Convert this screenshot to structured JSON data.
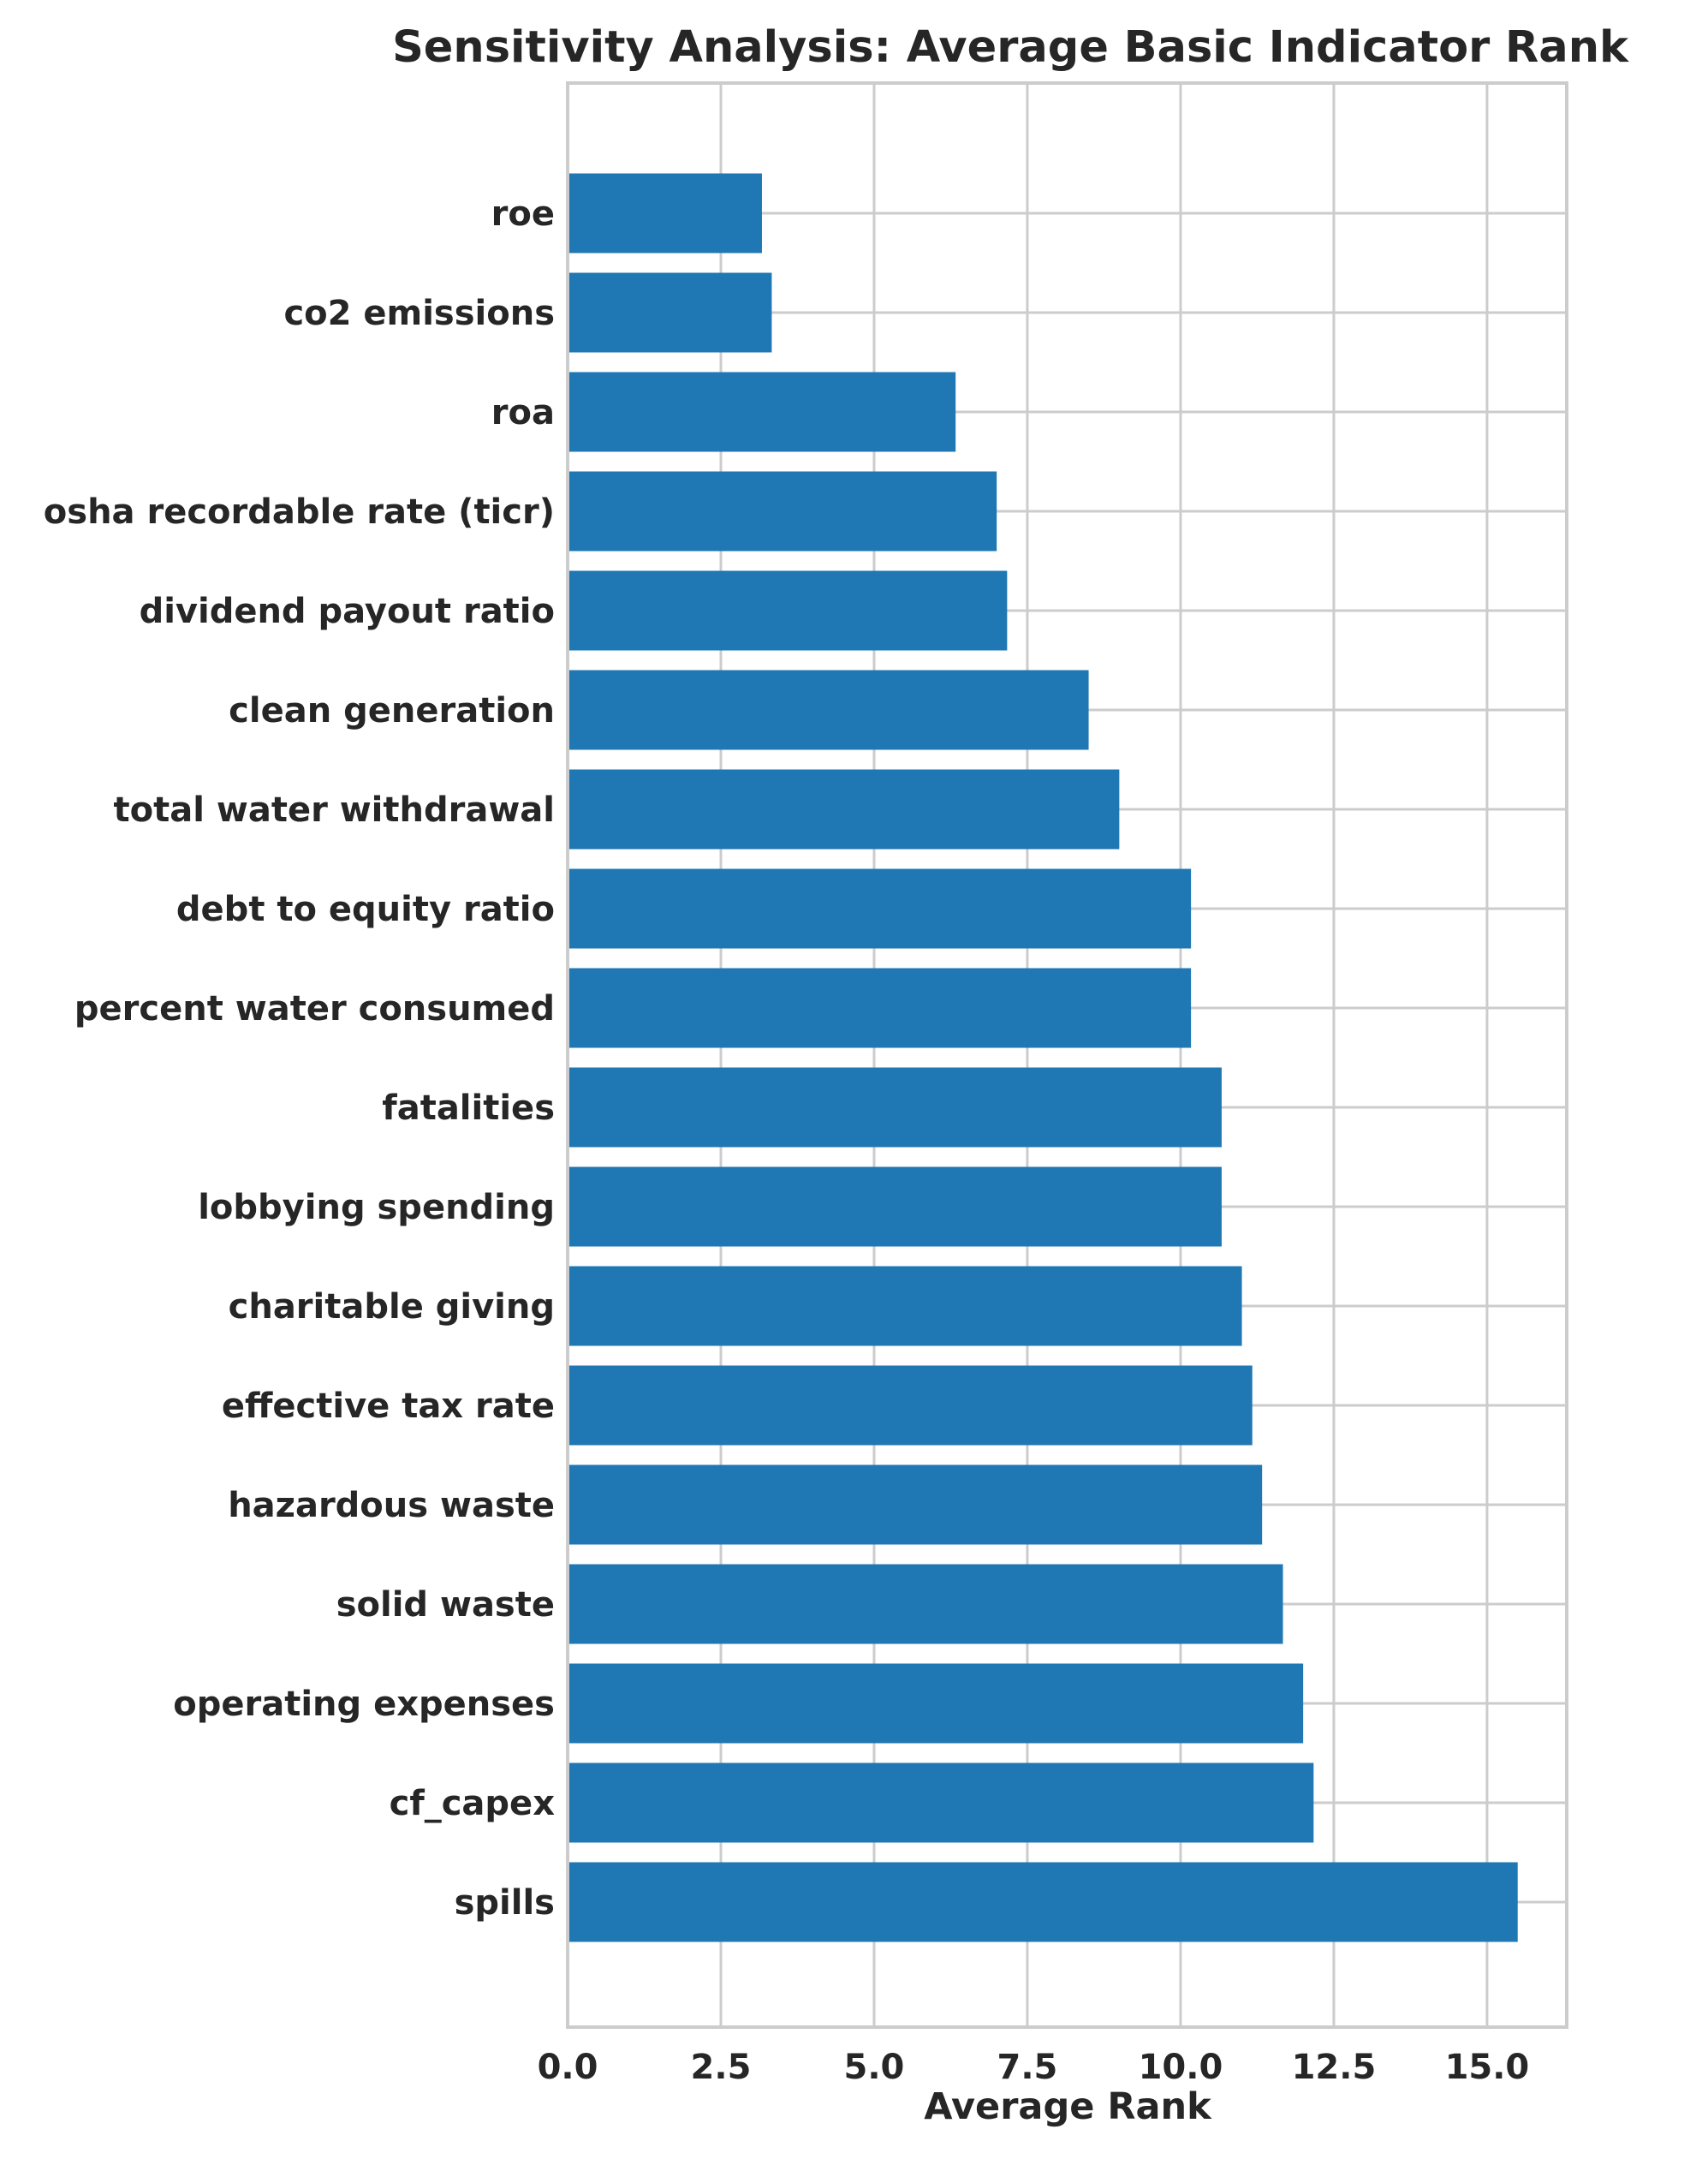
{
  "chart_data": {
    "type": "bar",
    "orientation": "horizontal",
    "title": "Sensitivity Analysis: Average Basic Indicator Rank",
    "xlabel": "Average Rank",
    "ylabel": "",
    "xlim": [
      0,
      16.3
    ],
    "x_ticks": [
      0.0,
      2.5,
      5.0,
      7.5,
      10.0,
      12.5,
      15.0
    ],
    "x_tick_labels": [
      "0.0",
      "2.5",
      "5.0",
      "7.5",
      "10.0",
      "12.5",
      "15.0"
    ],
    "grid": true,
    "bar_color": "#1f77b4",
    "categories": [
      "roe",
      "co2 emissions",
      "roa",
      "osha recordable rate (ticr)",
      "dividend payout ratio",
      "clean generation",
      "total water withdrawal",
      "debt to equity ratio",
      "percent water consumed",
      "fatalities",
      "lobbying spending",
      "charitable giving",
      "effective tax rate",
      "hazardous waste",
      "solid waste",
      "operating expenses",
      "cf_capex",
      "spills"
    ],
    "values": [
      3.17,
      3.33,
      6.33,
      7.0,
      7.17,
      8.5,
      9.0,
      10.17,
      10.17,
      10.67,
      10.67,
      11.0,
      11.17,
      11.33,
      11.67,
      12.0,
      12.17,
      15.5
    ]
  }
}
